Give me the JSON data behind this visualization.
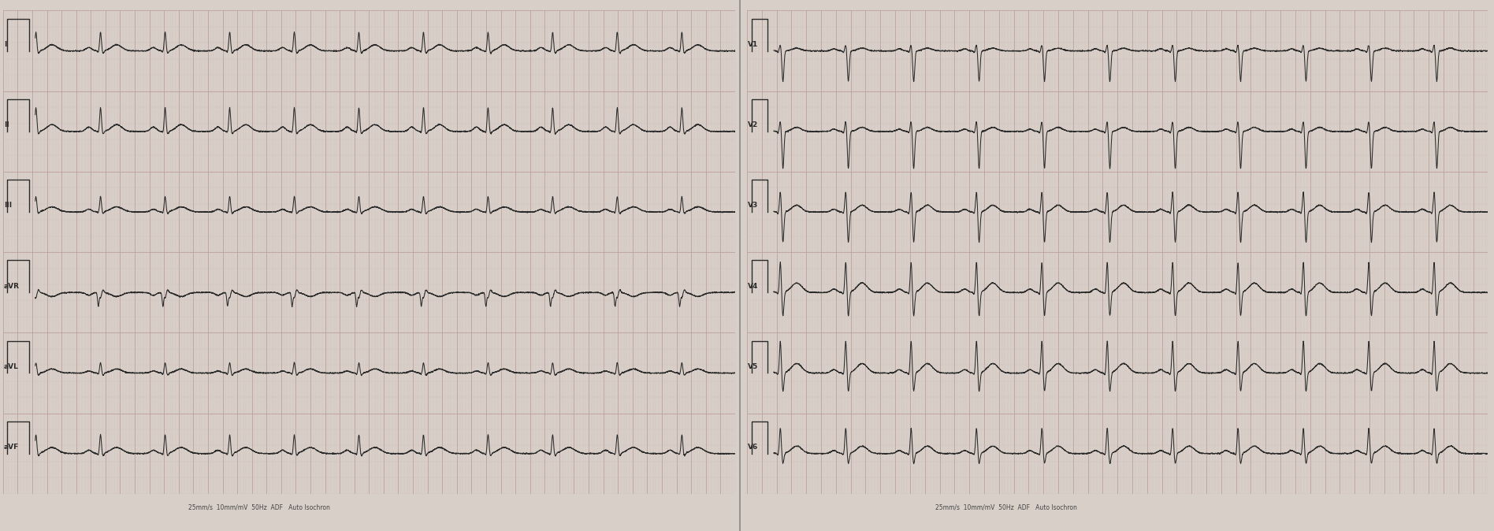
{
  "bg_color": "#d8cfc8",
  "grid_major_color": "#b89898",
  "grid_minor_color": "#ccc0b8",
  "line_color": "#2a2a2a",
  "label_color": "#2a2a2a",
  "footer_left": "25mm/s  10mm/mV  50Hz  ADF   Auto Isochron",
  "footer_right": "25mm/s  10mm/mV  50Hz  ADF   Auto Isochron",
  "leads_left": [
    "I",
    "II",
    "III",
    "aVR",
    "aVL",
    "aVF"
  ],
  "leads_right": [
    "V1",
    "V2",
    "V3",
    "V4",
    "V5",
    "V6"
  ],
  "fig_width": 18.96,
  "fig_height": 6.74,
  "dpi": 100,
  "heart_rate": 68,
  "lead_params": {
    "I": {
      "p": 0.1,
      "q": -0.04,
      "r": 0.55,
      "s": -0.08,
      "t": 0.18,
      "p_dur": 0.04,
      "t_dur": 0.07
    },
    "II": {
      "p": 0.13,
      "q": -0.04,
      "r": 0.7,
      "s": -0.08,
      "t": 0.2,
      "p_dur": 0.04,
      "t_dur": 0.07
    },
    "III": {
      "p": 0.08,
      "q": -0.03,
      "r": 0.45,
      "s": -0.06,
      "t": 0.15,
      "p_dur": 0.04,
      "t_dur": 0.08
    },
    "aVR": {
      "p": -0.08,
      "q": -0.4,
      "r": -0.15,
      "s": 0.08,
      "t": -0.12,
      "p_dur": 0.04,
      "t_dur": 0.07
    },
    "aVL": {
      "p": 0.06,
      "q": -0.04,
      "r": 0.3,
      "s": -0.07,
      "t": 0.12,
      "p_dur": 0.04,
      "t_dur": 0.07
    },
    "aVF": {
      "p": 0.1,
      "q": -0.04,
      "r": 0.55,
      "s": -0.08,
      "t": 0.18,
      "p_dur": 0.04,
      "t_dur": 0.08
    },
    "V1": {
      "p": 0.06,
      "q": -0.05,
      "r": 0.18,
      "s": -0.9,
      "t": 0.08,
      "p_dur": 0.035,
      "t_dur": 0.06
    },
    "V2": {
      "p": 0.07,
      "q": -0.05,
      "r": 0.3,
      "s": -1.1,
      "t": 0.12,
      "p_dur": 0.035,
      "t_dur": 0.06
    },
    "V3": {
      "p": 0.08,
      "q": -0.06,
      "r": 0.6,
      "s": -0.9,
      "t": 0.2,
      "p_dur": 0.038,
      "t_dur": 0.065
    },
    "V4": {
      "p": 0.1,
      "q": -0.06,
      "r": 0.9,
      "s": -0.7,
      "t": 0.28,
      "p_dur": 0.04,
      "t_dur": 0.07
    },
    "V5": {
      "p": 0.1,
      "q": -0.06,
      "r": 0.95,
      "s": -0.55,
      "t": 0.28,
      "p_dur": 0.04,
      "t_dur": 0.07
    },
    "V6": {
      "p": 0.09,
      "q": -0.05,
      "r": 0.75,
      "s": -0.3,
      "t": 0.22,
      "p_dur": 0.04,
      "t_dur": 0.07
    }
  }
}
